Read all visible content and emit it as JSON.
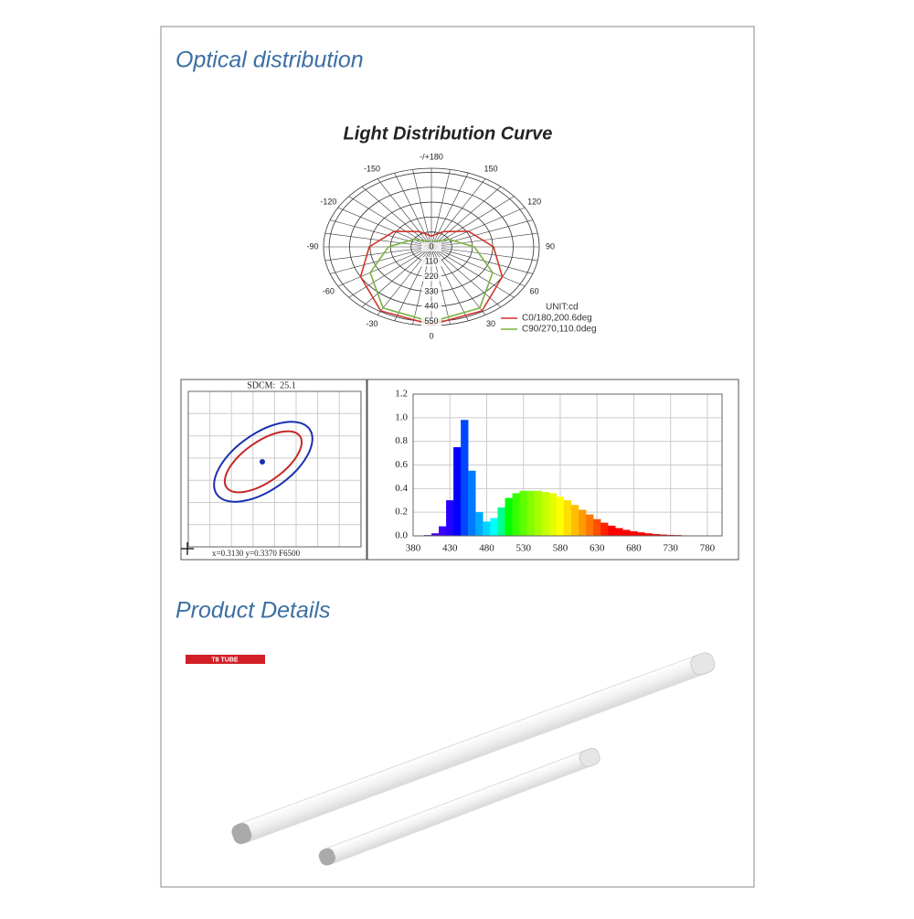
{
  "sections": {
    "optical": "Optical distribution",
    "details": "Product Details"
  },
  "polar_chart": {
    "type": "polar",
    "title": "Light Distribution Curve",
    "angle_ticks": [
      {
        "value": 180,
        "label": "-/+180"
      },
      150,
      120,
      90,
      60,
      30,
      0,
      -30,
      -60,
      -90,
      -120,
      -150
    ],
    "rlim": [
      0,
      580
    ],
    "rticks": [
      0,
      110,
      220,
      330,
      440,
      550
    ],
    "unit": "UNIT:cd",
    "theta": [
      0,
      30,
      60,
      90,
      120,
      150,
      180,
      -150,
      -120,
      -90,
      -60,
      -30
    ],
    "series": [
      {
        "name": "C0/180,200.6deg",
        "color": "#d0342c",
        "values": [
          573,
          545,
          440,
          334,
          230,
          130,
          80,
          130,
          230,
          334,
          440,
          545
        ]
      },
      {
        "name": "C90/270,110.0deg",
        "color": "#7cb342",
        "values": [
          553,
          520,
          380,
          231,
          110,
          50,
          30,
          50,
          110,
          231,
          380,
          520
        ]
      }
    ]
  },
  "color_tolerance": {
    "label": "SDCM:  25.1",
    "coordinates": "x=0.3130 y=0.3370 F6500"
  },
  "spectrum_chart": {
    "type": "bar",
    "x": [
      380,
      390,
      400,
      410,
      420,
      430,
      440,
      450,
      460,
      470,
      480,
      490,
      500,
      510,
      520,
      530,
      540,
      550,
      560,
      570,
      580,
      590,
      600,
      610,
      620,
      630,
      640,
      650,
      660,
      670,
      680,
      690,
      700,
      710,
      720,
      730,
      740,
      750,
      760,
      770,
      780
    ],
    "values": [
      0,
      0,
      0.005,
      0.02,
      0.08,
      0.3,
      0.75,
      0.98,
      0.55,
      0.2,
      0.12,
      0.15,
      0.24,
      0.32,
      0.36,
      0.38,
      0.38,
      0.38,
      0.37,
      0.36,
      0.33,
      0.3,
      0.26,
      0.22,
      0.18,
      0.14,
      0.11,
      0.085,
      0.065,
      0.05,
      0.038,
      0.028,
      0.02,
      0.014,
      0.01,
      0.007,
      0.005,
      0.003,
      0.002,
      0.001,
      0
    ],
    "xlim": [
      380,
      800
    ],
    "ylim": [
      0,
      1.2
    ],
    "xticks": [
      380,
      430,
      480,
      530,
      580,
      630,
      680,
      730,
      780
    ],
    "yticks": [
      {
        "value": 0,
        "label": "0.0"
      },
      0.2,
      0.4,
      0.6,
      0.8,
      {
        "value": 1,
        "label": "1.0"
      },
      1.2
    ]
  },
  "product": {
    "badge": "T8 TUBE"
  }
}
